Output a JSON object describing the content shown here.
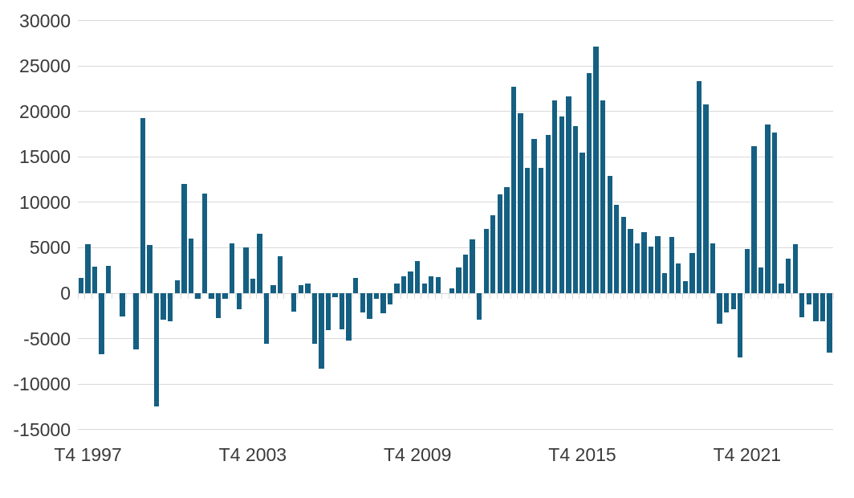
{
  "chart_data": {
    "type": "bar",
    "title": "",
    "xlabel": "",
    "ylabel": "",
    "categories": [
      "T3 1997",
      "T4 1997",
      "T1 1998",
      "T2 1998",
      "T3 1998",
      "T4 1998",
      "T1 1999",
      "T2 1999",
      "T3 1999",
      "T4 1999",
      "T1 2000",
      "T2 2000",
      "T3 2000",
      "T4 2000",
      "T1 2001",
      "T2 2001",
      "T3 2001",
      "T4 2001",
      "T1 2002",
      "T2 2002",
      "T3 2002",
      "T4 2002",
      "T1 2003",
      "T2 2003",
      "T3 2003",
      "T4 2003",
      "T1 2004",
      "T2 2004",
      "T3 2004",
      "T4 2004",
      "T1 2005",
      "T2 2005",
      "T3 2005",
      "T4 2005",
      "T1 2006",
      "T2 2006",
      "T3 2006",
      "T4 2006",
      "T1 2007",
      "T2 2007",
      "T3 2007",
      "T4 2007",
      "T1 2008",
      "T2 2008",
      "T3 2008",
      "T4 2008",
      "T1 2009",
      "T2 2009",
      "T3 2009",
      "T4 2009",
      "T1 2010",
      "T2 2010",
      "T3 2010",
      "T4 2010",
      "T1 2011",
      "T2 2011",
      "T3 2011",
      "T4 2011",
      "T1 2012",
      "T2 2012",
      "T3 2012",
      "T4 2012",
      "T1 2013",
      "T2 2013",
      "T3 2013",
      "T4 2013",
      "T1 2014",
      "T2 2014",
      "T3 2014",
      "T4 2014",
      "T1 2015",
      "T2 2015",
      "T3 2015",
      "T4 2015",
      "T1 2016",
      "T2 2016",
      "T3 2016",
      "T4 2016",
      "T1 2017",
      "T2 2017",
      "T3 2017",
      "T4 2017",
      "T1 2018",
      "T2 2018",
      "T3 2018",
      "T4 2018",
      "T1 2019",
      "T2 2019",
      "T3 2019",
      "T4 2019",
      "T1 2020",
      "T2 2020",
      "T3 2020",
      "T4 2020",
      "T1 2021",
      "T2 2021",
      "T3 2021",
      "T4 2021",
      "T1 2022",
      "T2 2022",
      "T3 2022",
      "T4 2022",
      "T1 2023",
      "T2 2023",
      "T3 2023",
      "T4 2023",
      "T1 2024",
      "T2 2024",
      "T3 2024",
      "T4 2024"
    ],
    "values": [
      1700,
      5400,
      2900,
      -6700,
      3000,
      0,
      -2600,
      0,
      -6200,
      19250,
      5300,
      -12500,
      -2900,
      -3100,
      1400,
      12050,
      6000,
      -600,
      11000,
      -600,
      -2700,
      -600,
      5500,
      -1800,
      5000,
      1550,
      6500,
      -5600,
      850,
      4050,
      0,
      -2000,
      900,
      1050,
      -5600,
      -8300,
      -4050,
      -400,
      -4000,
      -5200,
      1650,
      -2150,
      -2850,
      -600,
      -2250,
      -1250,
      1050,
      1850,
      2350,
      3550,
      1050,
      1850,
      1800,
      0,
      550,
      2850,
      4200,
      5900,
      -2900,
      7100,
      8600,
      10900,
      11700,
      22700,
      19800,
      13800,
      17000,
      13750,
      17400,
      21200,
      19450,
      21650,
      18400,
      15500,
      24200,
      27100,
      21200,
      12900,
      9700,
      8400,
      7050,
      5450,
      6750,
      5150,
      6300,
      2200,
      6200,
      3250,
      1300,
      4400,
      23300,
      20800,
      5500,
      -3400,
      -2150,
      -1800,
      -7100,
      4900,
      16200,
      2850,
      18600,
      17650,
      1050,
      3800,
      5350,
      -2650,
      -1200,
      -3050,
      -3100,
      -6500
    ],
    "yticks": [
      30000,
      25000,
      20000,
      15000,
      10000,
      5000,
      0,
      -5000,
      -10000,
      -15000
    ],
    "ylim": [
      -15000,
      30000
    ],
    "xtick_labels": [
      "T4 1997",
      "T4 2003",
      "T4 2009",
      "T4 2015",
      "T4 2021"
    ],
    "xtick_indices": [
      1,
      25,
      49,
      73,
      97
    ],
    "grid": "on",
    "legend": "none",
    "bar_color": "#156082",
    "gridline_color": "#d9d9d9",
    "tick_color": "#d9d9d9",
    "label_color": "#3a3a3a"
  }
}
